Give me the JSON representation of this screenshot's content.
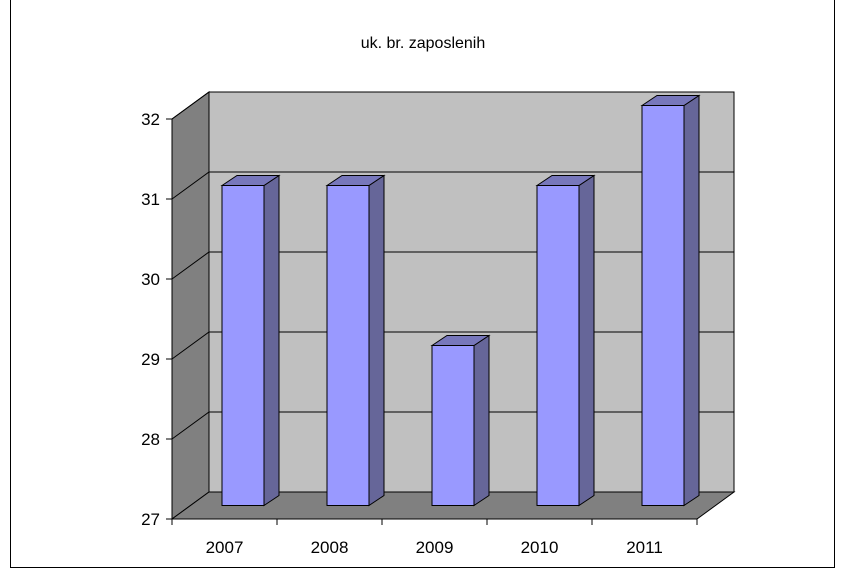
{
  "chart_data": {
    "type": "bar",
    "title": "uk. br. zaposlenih",
    "categories": [
      "2007",
      "2008",
      "2009",
      "2010",
      "2011"
    ],
    "values": [
      31,
      31,
      29,
      31,
      32
    ],
    "ylim": [
      27,
      32
    ],
    "yticks": [
      "27",
      "28",
      "29",
      "30",
      "31",
      "32"
    ],
    "grid": true,
    "three_d": true,
    "colors": {
      "bar_front": "#9999ff",
      "bar_side": "#666699",
      "bar_top": "#7777bb",
      "back_wall": "#c0c0c0",
      "side_wall": "#808080",
      "floor": "#808080"
    }
  }
}
